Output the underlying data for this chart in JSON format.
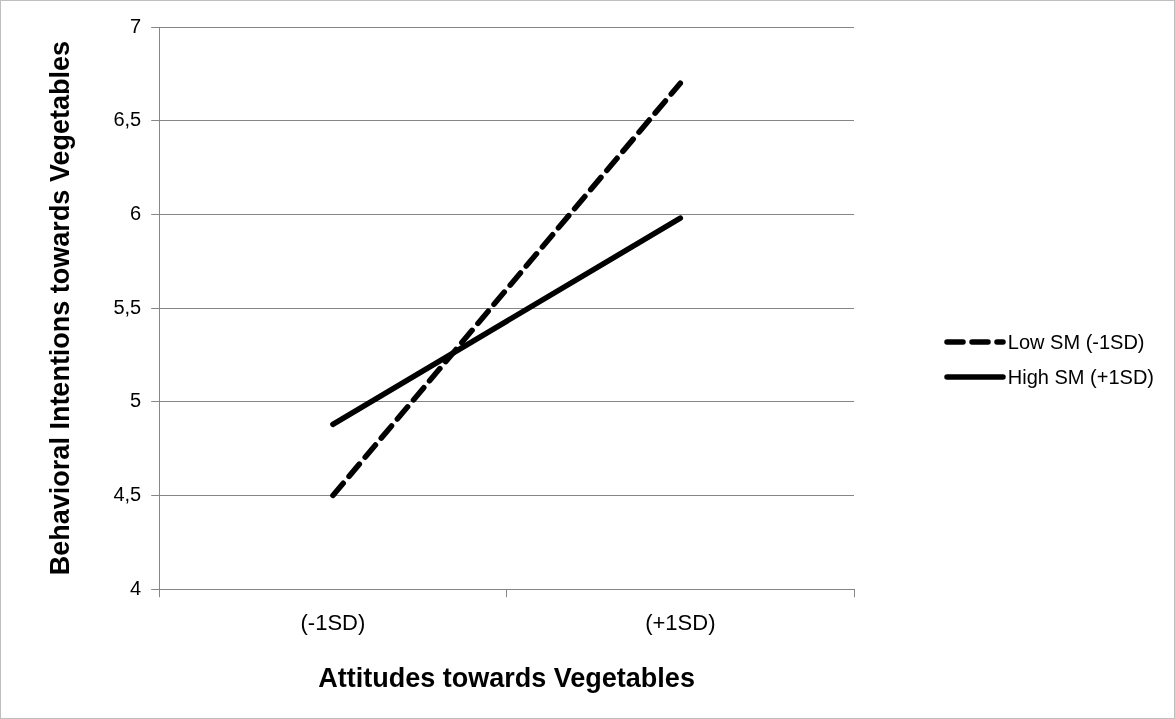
{
  "chart_data": {
    "type": "line",
    "xlabel": "Attitudes towards Vegetables",
    "ylabel": "Behavioral Intentions towards Vegetables",
    "categories": [
      "(-1SD)",
      "(+1SD)"
    ],
    "series": [
      {
        "name": "Low SM (-1SD)",
        "color": "#000000",
        "values": [
          4.5,
          6.7
        ],
        "line_style": "dashed"
      },
      {
        "name": "High SM (+1SD)",
        "color": "#000000",
        "values": [
          4.88,
          5.98
        ],
        "line_style": "solid"
      }
    ],
    "ylim": [
      4,
      7
    ],
    "yticks": [
      4,
      {
        "value": 4.5,
        "label": "4,5"
      },
      5,
      {
        "value": 5.5,
        "label": "5,5"
      },
      6,
      {
        "value": 6.5,
        "label": "6,5"
      },
      7
    ],
    "grid": "y",
    "legend": "right",
    "marker": "none"
  }
}
